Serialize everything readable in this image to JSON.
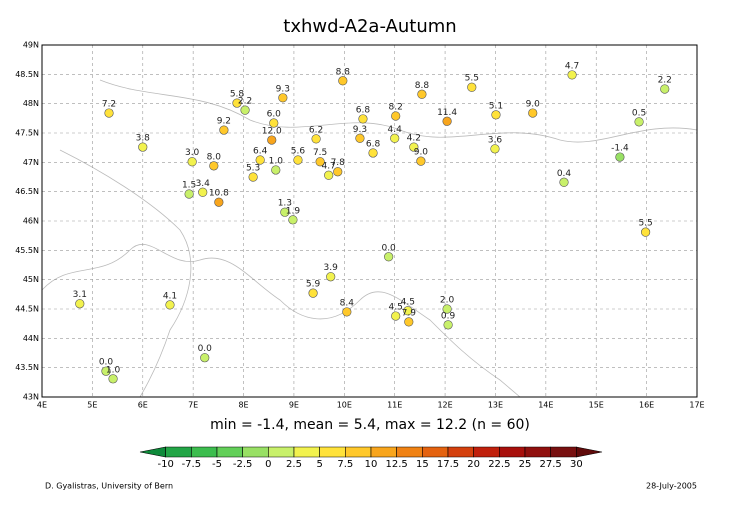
{
  "chart_data": {
    "type": "scatter",
    "title": "txhwd-A2a-Autumn",
    "subtitle": "min = -1.4, mean = 5.4, max = 12.2 (n = 60)",
    "footer_left": "D. Gyalistras, University of Bern",
    "footer_right": "28-July-2005",
    "xlim": [
      4,
      17
    ],
    "ylim": [
      43,
      49
    ],
    "xticks": [
      {
        "value": 4,
        "label": "4E"
      },
      {
        "value": 5,
        "label": "5E"
      },
      {
        "value": 6,
        "label": "6E"
      },
      {
        "value": 7,
        "label": "7E"
      },
      {
        "value": 8,
        "label": "8E"
      },
      {
        "value": 9,
        "label": "9E"
      },
      {
        "value": 10,
        "label": "10E"
      },
      {
        "value": 11,
        "label": "11E"
      },
      {
        "value": 12,
        "label": "12E"
      },
      {
        "value": 13,
        "label": "13E"
      },
      {
        "value": 14,
        "label": "14E"
      },
      {
        "value": 15,
        "label": "15E"
      },
      {
        "value": 16,
        "label": "16E"
      },
      {
        "value": 17,
        "label": "17E"
      }
    ],
    "yticks": [
      {
        "value": 43,
        "label": "43N"
      },
      {
        "value": 43.5,
        "label": "43.5N"
      },
      {
        "value": 44,
        "label": "44N"
      },
      {
        "value": 44.5,
        "label": "44.5N"
      },
      {
        "value": 45,
        "label": "45N"
      },
      {
        "value": 45.5,
        "label": "45.5N"
      },
      {
        "value": 46,
        "label": "46N"
      },
      {
        "value": 46.5,
        "label": "46.5N"
      },
      {
        "value": 47,
        "label": "47N"
      },
      {
        "value": 47.5,
        "label": "47.5N"
      },
      {
        "value": 48,
        "label": "48N"
      },
      {
        "value": 48.5,
        "label": "48.5N"
      },
      {
        "value": 49,
        "label": "49N"
      }
    ],
    "grid": true,
    "x": [
      5.33,
      6.0,
      7.87,
      8.03,
      7.61,
      8.78,
      9.97,
      12.53,
      14.52,
      16.36,
      8.6,
      8.56,
      10.37,
      11.02,
      11.54,
      13.01,
      13.74,
      15.85,
      12.04,
      6.98,
      7.41,
      8.33,
      8.64,
      8.19,
      9.08,
      9.44,
      10.31,
      11.0,
      11.38,
      11.52,
      10.57,
      12.99,
      15.47,
      14.36,
      9.52,
      9.69,
      9.87,
      6.92,
      7.19,
      7.51,
      8.82,
      8.98,
      10.88,
      15.98,
      9.73,
      9.38,
      10.05,
      11.02,
      11.26,
      11.28,
      12.04,
      12.06,
      6.54,
      4.75,
      5.27,
      5.41,
      7.23
    ],
    "y": [
      47.84,
      47.26,
      48.01,
      47.89,
      47.55,
      48.1,
      48.39,
      48.28,
      48.49,
      48.25,
      47.67,
      47.38,
      47.74,
      47.79,
      48.16,
      47.81,
      47.84,
      47.69,
      47.7,
      47.01,
      46.94,
      47.04,
      46.87,
      46.75,
      47.04,
      47.4,
      47.41,
      47.41,
      47.26,
      47.02,
      47.16,
      47.23,
      47.09,
      46.66,
      47.01,
      46.78,
      46.84,
      46.46,
      46.49,
      46.32,
      46.15,
      46.02,
      45.39,
      45.81,
      45.05,
      44.77,
      44.45,
      44.38,
      44.47,
      44.28,
      44.5,
      44.23,
      44.57,
      44.59,
      43.44,
      43.31,
      43.67
    ],
    "values": [
      7.2,
      3.8,
      5.8,
      2.2,
      9.2,
      9.3,
      8.8,
      5.5,
      4.7,
      2.2,
      6.0,
      12.0,
      6.8,
      8.2,
      8.8,
      5.1,
      9.0,
      0.5,
      11.4,
      3.0,
      8.0,
      6.4,
      1.0,
      5.3,
      5.6,
      6.2,
      9.3,
      4.4,
      4.2,
      9.0,
      6.8,
      3.6,
      -1.4,
      0.4,
      7.5,
      4.7,
      7.8,
      1.5,
      3.4,
      10.8,
      1.3,
      1.9,
      0.0,
      5.5,
      3.9,
      5.9,
      8.4,
      4.5,
      4.5,
      7.9,
      2.0,
      0.9,
      4.1,
      3.1,
      0.0,
      1.0,
      0.0
    ],
    "value_labels": [
      "7.2",
      "3.8",
      "5.8",
      "2.2",
      "9.2",
      "9.3",
      "8.8",
      "5.5",
      "4.7",
      "2.2",
      "6.0",
      "12.0",
      "6.8",
      "8.2",
      "8.8",
      "5.1",
      "9.0",
      "0.5",
      "11.4",
      "3.0",
      "8.0",
      "6.4",
      "1.0",
      "5.3",
      "5.6",
      "6.2",
      "9.3",
      "4.4",
      "4.2",
      "9.0",
      "6.8",
      "3.6",
      "-1.4",
      "0.4",
      "7.5",
      "4.7",
      "7.8",
      "1.5",
      "3.4",
      "10.8",
      "1.3",
      "1.9",
      "0.0",
      "5.5",
      "3.9",
      "5.9",
      "8.4",
      "4.5",
      "4.5",
      "7.9",
      "2.0",
      "0.9",
      "4.1",
      "3.1",
      "0.0",
      "1.0",
      "0.0"
    ],
    "color_bounds": [
      -10,
      -7.5,
      -5,
      -2.5,
      0,
      2.5,
      5,
      7.5,
      10,
      12.5,
      15,
      17.5,
      20,
      22.5,
      25,
      27.5,
      30
    ],
    "color_scale": [
      "#0e8a3a",
      "#22a546",
      "#3cbd4e",
      "#62cf58",
      "#98e064",
      "#c8f06a",
      "#f2f24e",
      "#ffe23a",
      "#ffc82a",
      "#f8a51c",
      "#f08214",
      "#e4620f",
      "#d4400d",
      "#c0200c",
      "#a8100c",
      "#90100e",
      "#781010",
      "#600a0a"
    ]
  }
}
